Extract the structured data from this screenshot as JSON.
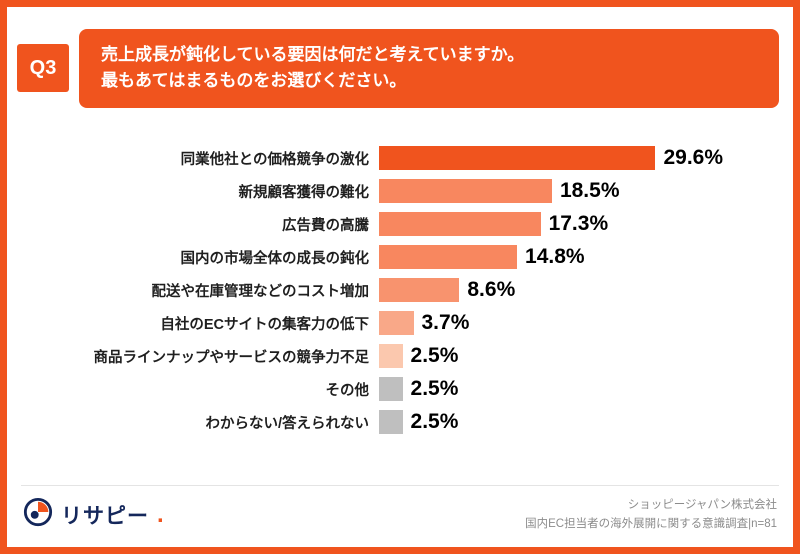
{
  "frame": {
    "border_color": "#F0541E"
  },
  "header": {
    "q_label": "Q3",
    "question_lines": [
      "売上成長が鈍化している要因は何だと考えていますか。",
      "最もあてはまるものをお選びください。"
    ]
  },
  "chart_data": {
    "type": "bar",
    "orientation": "horizontal",
    "title": "売上成長が鈍化している要因は何だと考えていますか。最もあてはまるものをお選びください。",
    "categories": [
      "同業他社との価格競争の激化",
      "新規顧客獲得の難化",
      "広告費の高騰",
      "国内の市場全体の成長の鈍化",
      "配送や在庫管理などのコスト増加",
      "自社のECサイトの集客力の低下",
      "商品ラインナップやサービスの競争力不足",
      "その他",
      "わからない/答えられない"
    ],
    "values": [
      29.6,
      18.5,
      17.3,
      14.8,
      8.6,
      3.7,
      2.5,
      2.5,
      2.5
    ],
    "value_labels": [
      "29.6%",
      "18.5%",
      "17.3%",
      "14.8%",
      "8.6%",
      "3.7%",
      "2.5%",
      "2.5%",
      "2.5%"
    ],
    "bar_colors": [
      "#F0541E",
      "#F8875F",
      "#F8875F",
      "#F8875F",
      "#F8936E",
      "#F9A888",
      "#FBC8AE",
      "#BFBFBF",
      "#BFBFBF"
    ],
    "xlim": [
      0,
      30
    ],
    "unit": "%",
    "grid": false,
    "legend": false
  },
  "footer": {
    "logo_text": "リサピー",
    "logo_dot": ".",
    "source_line1": "ショッピージャパン株式会社",
    "source_line2": "国内EC担当者の海外展開に関する意識調査|n=81"
  }
}
